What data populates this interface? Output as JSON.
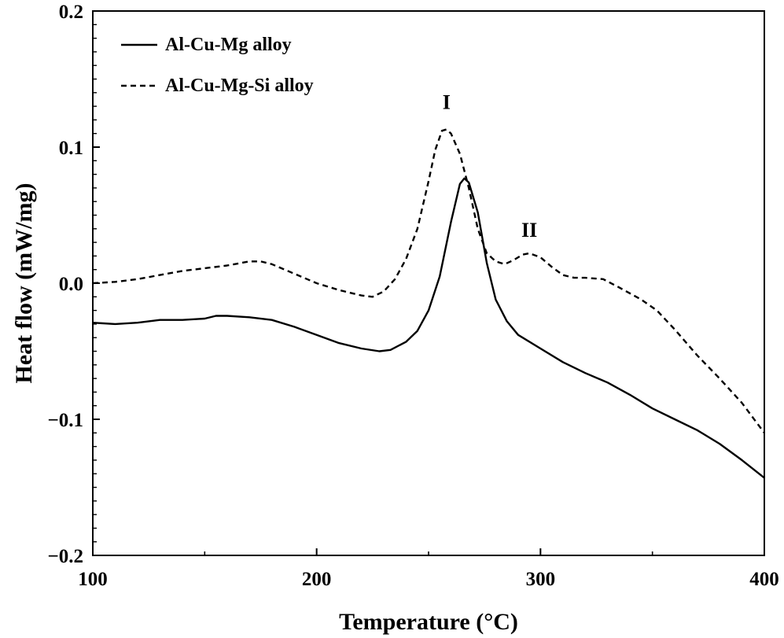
{
  "chart_data": {
    "type": "line",
    "xlabel": "Temperature (°C)",
    "ylabel": "Heat flow (mW/mg)",
    "xlim": [
      100,
      400
    ],
    "ylim": [
      -0.2,
      0.2
    ],
    "xticks": [
      100,
      200,
      300,
      400
    ],
    "xtick_labels": [
      "100",
      "200",
      "300",
      "400"
    ],
    "yticks": [
      -0.2,
      -0.1,
      0.0,
      0.1,
      0.2
    ],
    "ytick_labels": [
      "−0.2",
      "−0.1",
      "0.0",
      "0.1",
      "0.2"
    ],
    "grid": false,
    "legend_position": "top-left",
    "series": [
      {
        "name": "Al-Cu-Mg alloy",
        "style": "solid",
        "color": "#000000",
        "points": [
          [
            100,
            -0.029
          ],
          [
            110,
            -0.03
          ],
          [
            120,
            -0.029
          ],
          [
            130,
            -0.027
          ],
          [
            140,
            -0.027
          ],
          [
            150,
            -0.026
          ],
          [
            155,
            -0.024
          ],
          [
            160,
            -0.024
          ],
          [
            170,
            -0.025
          ],
          [
            180,
            -0.027
          ],
          [
            190,
            -0.032
          ],
          [
            200,
            -0.038
          ],
          [
            210,
            -0.044
          ],
          [
            220,
            -0.048
          ],
          [
            228,
            -0.05
          ],
          [
            233,
            -0.049
          ],
          [
            240,
            -0.043
          ],
          [
            245,
            -0.035
          ],
          [
            250,
            -0.02
          ],
          [
            255,
            0.005
          ],
          [
            260,
            0.045
          ],
          [
            264,
            0.073
          ],
          [
            266,
            0.077
          ],
          [
            268,
            0.074
          ],
          [
            272,
            0.052
          ],
          [
            276,
            0.015
          ],
          [
            280,
            -0.012
          ],
          [
            285,
            -0.028
          ],
          [
            290,
            -0.038
          ],
          [
            300,
            -0.048
          ],
          [
            310,
            -0.058
          ],
          [
            320,
            -0.066
          ],
          [
            330,
            -0.073
          ],
          [
            340,
            -0.082
          ],
          [
            350,
            -0.092
          ],
          [
            360,
            -0.1
          ],
          [
            370,
            -0.108
          ],
          [
            380,
            -0.118
          ],
          [
            390,
            -0.13
          ],
          [
            400,
            -0.143
          ]
        ]
      },
      {
        "name": "Al-Cu-Mg-Si alloy",
        "style": "dashed",
        "color": "#000000",
        "points": [
          [
            100,
            0.0
          ],
          [
            110,
            0.001
          ],
          [
            120,
            0.003
          ],
          [
            130,
            0.006
          ],
          [
            140,
            0.009
          ],
          [
            150,
            0.011
          ],
          [
            160,
            0.013
          ],
          [
            170,
            0.016
          ],
          [
            175,
            0.016
          ],
          [
            180,
            0.014
          ],
          [
            190,
            0.007
          ],
          [
            200,
            0.0
          ],
          [
            210,
            -0.005
          ],
          [
            220,
            -0.009
          ],
          [
            225,
            -0.01
          ],
          [
            230,
            -0.006
          ],
          [
            235,
            0.003
          ],
          [
            240,
            0.018
          ],
          [
            245,
            0.04
          ],
          [
            250,
            0.075
          ],
          [
            253,
            0.098
          ],
          [
            256,
            0.112
          ],
          [
            258,
            0.113
          ],
          [
            260,
            0.11
          ],
          [
            264,
            0.095
          ],
          [
            268,
            0.07
          ],
          [
            272,
            0.04
          ],
          [
            276,
            0.022
          ],
          [
            280,
            0.016
          ],
          [
            284,
            0.014
          ],
          [
            288,
            0.017
          ],
          [
            292,
            0.021
          ],
          [
            295,
            0.022
          ],
          [
            300,
            0.019
          ],
          [
            305,
            0.012
          ],
          [
            310,
            0.006
          ],
          [
            315,
            0.004
          ],
          [
            320,
            0.004
          ],
          [
            328,
            0.003
          ],
          [
            335,
            -0.003
          ],
          [
            345,
            -0.012
          ],
          [
            352,
            -0.02
          ],
          [
            360,
            -0.034
          ],
          [
            370,
            -0.053
          ],
          [
            380,
            -0.07
          ],
          [
            390,
            -0.088
          ],
          [
            400,
            -0.11
          ]
        ]
      }
    ],
    "annotations": [
      {
        "text": "I",
        "x": 258,
        "y": 0.128
      },
      {
        "text": "II",
        "x": 295,
        "y": 0.034
      }
    ]
  }
}
